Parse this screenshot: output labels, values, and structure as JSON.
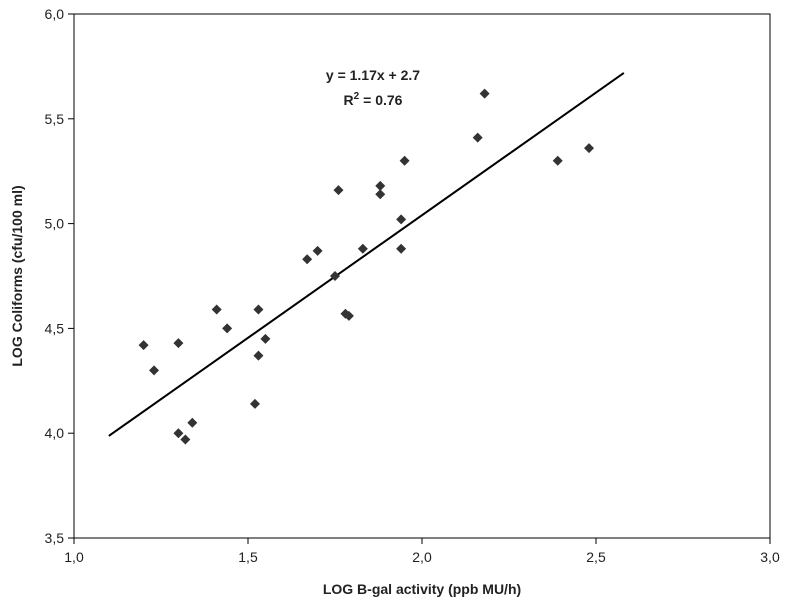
{
  "chart_data": {
    "type": "scatter",
    "xlabel": "LOG B-gal activity (ppb MU/h)",
    "ylabel": "LOG Coliforms (cfu/100 ml)",
    "xlim": [
      1.0,
      3.0
    ],
    "ylim": [
      3.5,
      6.0
    ],
    "x_ticks": [
      "1,0",
      "1,5",
      "2,0",
      "2,5",
      "3,0"
    ],
    "y_ticks": [
      "3,5",
      "4,0",
      "4,5",
      "5,0",
      "5,5",
      "6,0"
    ],
    "grid": false,
    "legend": "none",
    "marker": "diamond",
    "marker_color": "#333333",
    "series": [
      {
        "points": [
          {
            "x": 1.2,
            "y": 4.42
          },
          {
            "x": 1.23,
            "y": 4.3
          },
          {
            "x": 1.3,
            "y": 4.43
          },
          {
            "x": 1.3,
            "y": 4.0
          },
          {
            "x": 1.32,
            "y": 3.97
          },
          {
            "x": 1.34,
            "y": 4.05
          },
          {
            "x": 1.41,
            "y": 4.59
          },
          {
            "x": 1.44,
            "y": 4.5
          },
          {
            "x": 1.52,
            "y": 4.14
          },
          {
            "x": 1.53,
            "y": 4.59
          },
          {
            "x": 1.53,
            "y": 4.37
          },
          {
            "x": 1.55,
            "y": 4.45
          },
          {
            "x": 1.67,
            "y": 4.83
          },
          {
            "x": 1.7,
            "y": 4.87
          },
          {
            "x": 1.75,
            "y": 4.75
          },
          {
            "x": 1.76,
            "y": 5.16
          },
          {
            "x": 1.78,
            "y": 4.57
          },
          {
            "x": 1.79,
            "y": 4.56
          },
          {
            "x": 1.83,
            "y": 4.88
          },
          {
            "x": 1.88,
            "y": 5.18
          },
          {
            "x": 1.88,
            "y": 5.14
          },
          {
            "x": 1.94,
            "y": 5.02
          },
          {
            "x": 1.94,
            "y": 4.88
          },
          {
            "x": 1.95,
            "y": 5.3
          },
          {
            "x": 2.16,
            "y": 5.41
          },
          {
            "x": 2.18,
            "y": 5.62
          },
          {
            "x": 2.39,
            "y": 5.3
          },
          {
            "x": 2.48,
            "y": 5.36
          }
        ]
      }
    ],
    "trendline": {
      "slope": 1.17,
      "intercept": 2.7,
      "x_start": 1.1,
      "x_end": 2.58,
      "equation_label": "y = 1.17x + 2.7",
      "r2_prefix": "R",
      "r2_sup": "2",
      "r2_value": " = 0.76"
    }
  }
}
